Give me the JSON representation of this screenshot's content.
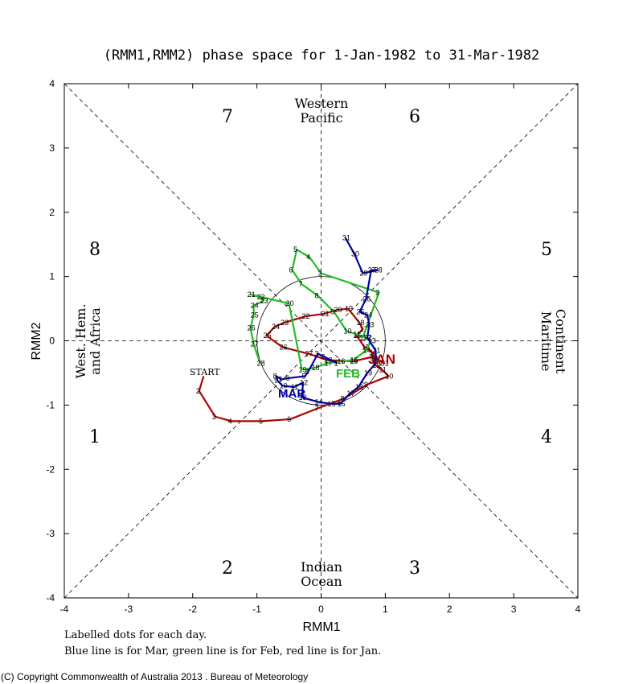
{
  "chart_data": {
    "type": "line",
    "title": "(RMM1,RMM2) phase space for  1-Jan-1982 to 31-Mar-1982",
    "xlabel": "RMM1",
    "ylabel": "RMM2",
    "xlim": [
      -4,
      4
    ],
    "ylim": [
      -4,
      4
    ],
    "ticks": [
      "-4",
      "-3",
      "-2",
      "-1",
      "0",
      "1",
      "2",
      "3",
      "4"
    ],
    "phase_numbers": {
      "p1": "1",
      "p2": "2",
      "p3": "3",
      "p4": "4",
      "p5": "5",
      "p6": "6",
      "p7": "7",
      "p8": "8"
    },
    "regions": {
      "top": [
        "Western",
        "Pacific"
      ],
      "bottom": [
        "Indian",
        "Ocean"
      ],
      "left": [
        "West. Hem.",
        "and Africa"
      ],
      "right": [
        "Maritime",
        "Continent"
      ]
    },
    "start_label": "START",
    "month_labels": {
      "jan": "JAN",
      "feb": "FEB",
      "mar": "MAR"
    },
    "series": [
      {
        "name": "Jan",
        "color": "#b00000",
        "points": [
          [
            -1.83,
            -0.55,
            ""
          ],
          [
            -1.9,
            -0.78,
            "2"
          ],
          [
            -1.65,
            -1.18,
            "3"
          ],
          [
            -1.4,
            -1.25,
            "4"
          ],
          [
            -0.92,
            -1.25,
            "5"
          ],
          [
            -0.48,
            -1.22,
            "6"
          ],
          [
            -0.05,
            -1.05,
            "7"
          ],
          [
            0.35,
            -0.9,
            "8"
          ],
          [
            0.72,
            -0.68,
            "9"
          ],
          [
            1.05,
            -0.55,
            "10"
          ],
          [
            0.95,
            -0.45,
            "11"
          ],
          [
            0.85,
            -0.38,
            "12"
          ],
          [
            0.82,
            -0.28,
            "13"
          ],
          [
            0.8,
            -0.18,
            "14"
          ],
          [
            0.68,
            -0.1,
            "15"
          ],
          [
            0.55,
            0.08,
            "16"
          ],
          [
            0.65,
            0.18,
            "17"
          ],
          [
            0.6,
            0.28,
            "18"
          ],
          [
            0.42,
            0.5,
            "19"
          ],
          [
            0.25,
            0.48,
            "20"
          ],
          [
            0.05,
            0.42,
            "21"
          ],
          [
            -0.25,
            0.38,
            "22"
          ],
          [
            -0.58,
            0.28,
            "23"
          ],
          [
            -0.72,
            0.22,
            "24"
          ],
          [
            -0.85,
            0.08,
            "25"
          ],
          [
            -0.6,
            -0.1,
            "26"
          ],
          [
            -0.2,
            -0.2,
            "27"
          ],
          [
            0.1,
            -0.3,
            "28"
          ],
          [
            0.5,
            -0.32,
            "29"
          ],
          [
            0.8,
            -0.25,
            "30"
          ],
          [
            0.98,
            -0.35,
            "31"
          ]
        ]
      },
      {
        "name": "Feb",
        "color": "#22bb22",
        "points": [
          [
            0.65,
            0.05,
            "1"
          ],
          [
            0.9,
            0.75,
            "2"
          ],
          [
            0.0,
            1.05,
            "3"
          ],
          [
            -0.18,
            1.3,
            "4"
          ],
          [
            -0.38,
            1.42,
            "5"
          ],
          [
            -0.45,
            1.1,
            "6"
          ],
          [
            -0.3,
            0.88,
            "7"
          ],
          [
            -0.05,
            0.7,
            "8"
          ],
          [
            0.2,
            0.45,
            "9"
          ],
          [
            0.4,
            0.15,
            "10"
          ],
          [
            0.55,
            0.1,
            "11"
          ],
          [
            0.7,
            0.05,
            "12"
          ],
          [
            0.78,
            0.0,
            "13"
          ],
          [
            0.7,
            -0.15,
            "14"
          ],
          [
            0.5,
            -0.3,
            "15"
          ],
          [
            0.3,
            -0.32,
            "16"
          ],
          [
            0.1,
            -0.35,
            "17"
          ],
          [
            -0.1,
            -0.42,
            "18"
          ],
          [
            -0.3,
            -0.45,
            "19"
          ],
          [
            -0.5,
            0.58,
            "20"
          ],
          [
            -1.1,
            0.72,
            "21"
          ],
          [
            -0.95,
            0.68,
            "22"
          ],
          [
            -0.9,
            0.62,
            "23"
          ],
          [
            -1.05,
            0.55,
            "24"
          ],
          [
            -1.05,
            0.4,
            "25"
          ],
          [
            -1.1,
            0.2,
            "26"
          ],
          [
            -1.05,
            -0.05,
            "27"
          ],
          [
            -0.95,
            -0.35,
            "28"
          ]
        ]
      },
      {
        "name": "Mar",
        "color": "#0000aa",
        "points": [
          [
            0.25,
            -0.35,
            "1"
          ],
          [
            0.05,
            -0.25,
            "2"
          ],
          [
            -0.05,
            -0.2,
            "3"
          ],
          [
            -0.2,
            -0.48,
            "4"
          ],
          [
            -0.25,
            -0.55,
            "5"
          ],
          [
            -0.5,
            -0.58,
            "6"
          ],
          [
            -0.62,
            -0.6,
            "7"
          ],
          [
            -0.7,
            -0.55,
            "8"
          ],
          [
            -0.68,
            -0.62,
            "9"
          ],
          [
            -0.6,
            -0.7,
            "10"
          ],
          [
            -0.42,
            -0.72,
            "11"
          ],
          [
            -0.28,
            -0.65,
            "12"
          ],
          [
            -0.3,
            -0.88,
            "13"
          ],
          [
            -0.05,
            -0.95,
            "14"
          ],
          [
            0.15,
            -0.98,
            "15"
          ],
          [
            0.3,
            -0.98,
            "16"
          ],
          [
            0.45,
            -0.82,
            "17"
          ],
          [
            0.58,
            -0.72,
            "18"
          ],
          [
            0.72,
            -0.5,
            "19"
          ],
          [
            0.85,
            -0.35,
            "20"
          ],
          [
            0.85,
            -0.15,
            "21"
          ],
          [
            0.72,
            0.05,
            "22"
          ],
          [
            0.75,
            0.25,
            "23"
          ],
          [
            0.72,
            0.4,
            "24"
          ],
          [
            0.6,
            0.45,
            "25"
          ],
          [
            0.7,
            0.65,
            "26"
          ],
          [
            0.78,
            1.1,
            "27"
          ],
          [
            0.88,
            1.1,
            "28"
          ],
          [
            0.65,
            1.05,
            "29"
          ],
          [
            0.52,
            1.35,
            "30"
          ],
          [
            0.38,
            1.6,
            "31"
          ]
        ]
      }
    ]
  },
  "footer": {
    "note1": "Labelled dots for each day.",
    "note2": "Blue line is for Mar, green line is for Feb, red line is for Jan.",
    "copyright": "(C) Copyright Commonwealth of Australia 2013 . Bureau of Meteorology"
  }
}
